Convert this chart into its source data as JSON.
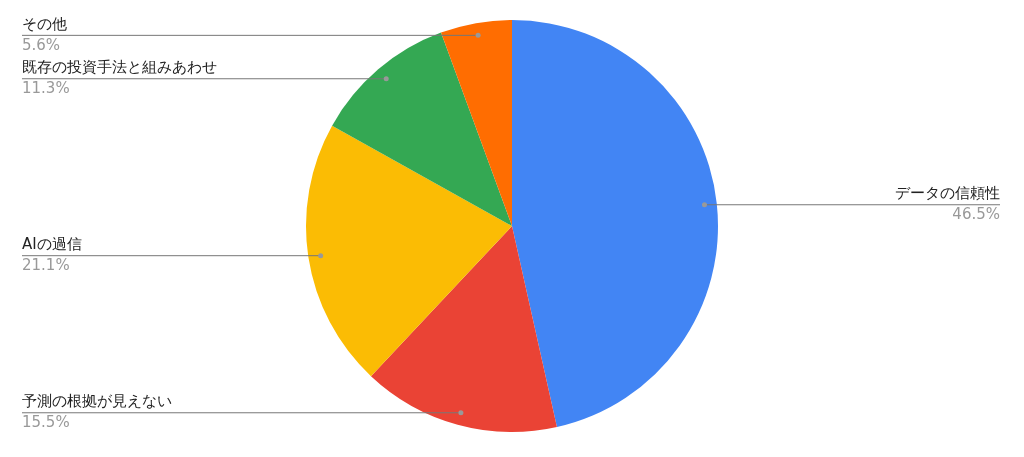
{
  "chart_data": {
    "type": "pie",
    "categories": [
      "データの信頼性",
      "予測の根拠が見えない",
      "AIの過信",
      "既存の投資手法と組みあわせ",
      "その他"
    ],
    "values": [
      46.5,
      15.5,
      21.1,
      11.3,
      5.6
    ],
    "value_labels": [
      "46.5%",
      "15.5%",
      "21.1%",
      "11.3%",
      "5.6%"
    ],
    "colors": [
      "#4285f4",
      "#ea4335",
      "#fbbc04",
      "#34a853",
      "#ff6d01"
    ],
    "legend": false
  }
}
